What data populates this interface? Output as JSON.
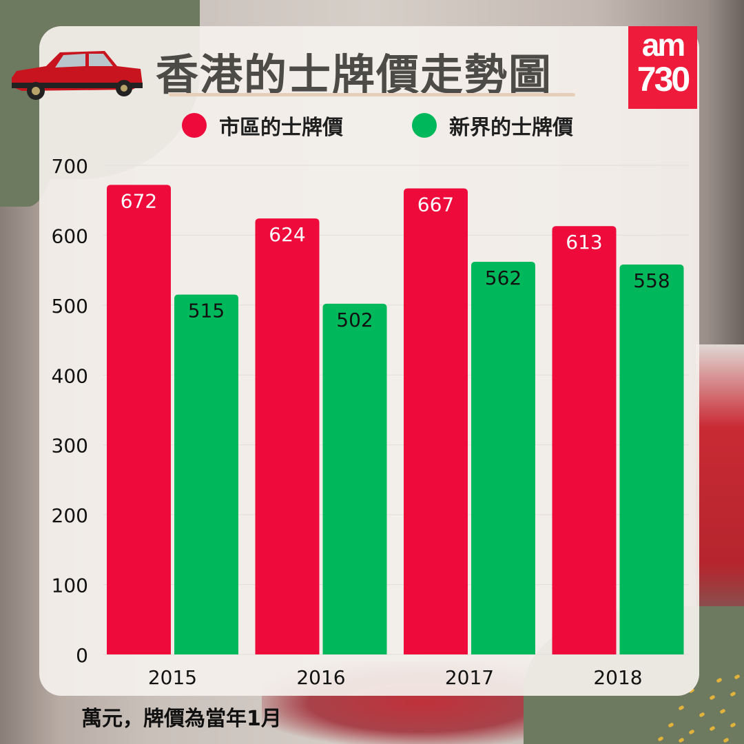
{
  "header": {
    "title": "香港的士牌價走勢圖",
    "logo_text": [
      "am",
      "730"
    ]
  },
  "footnote": "萬元，牌價為當年1月",
  "chart_data": {
    "type": "bar",
    "title": "香港的士牌價走勢圖",
    "categories": [
      "2015",
      "2016",
      "2017",
      "2018"
    ],
    "series": [
      {
        "name": "市區的士牌價",
        "color": "#ee0a3a",
        "values": [
          672,
          624,
          667,
          613
        ]
      },
      {
        "name": "新界的士牌價",
        "color": "#00b85c",
        "values": [
          515,
          502,
          562,
          558
        ]
      }
    ],
    "ylim": [
      0,
      700
    ],
    "yticks": [
      "0",
      "100",
      "200",
      "300",
      "400",
      "500",
      "600",
      "700"
    ],
    "grid": true,
    "legend": "top",
    "unit_note": "萬元"
  }
}
